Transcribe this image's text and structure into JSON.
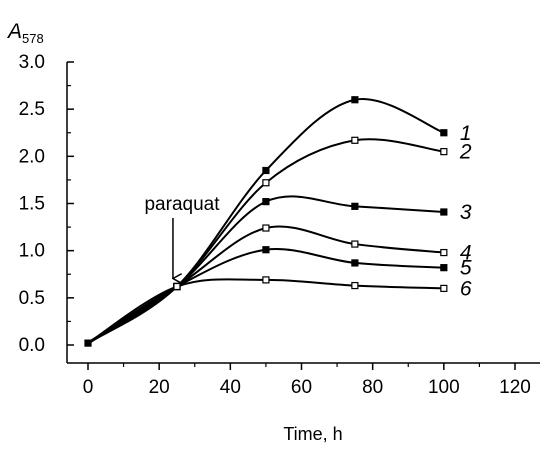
{
  "chart_data": {
    "type": "line",
    "ylabel": "A",
    "ylabel_sub": "578",
    "xlabel": "Time, h",
    "xlim": [
      0,
      120
    ],
    "ylim": [
      0,
      3.0
    ],
    "xticks": [
      "0",
      "20",
      "40",
      "60",
      "80",
      "100",
      "120"
    ],
    "yticks": [
      "0.0",
      "0.5",
      "1.0",
      "1.5",
      "2.0",
      "2.5",
      "3.0"
    ],
    "grid": false,
    "legend": "curve numbers at right end of each line",
    "annotation": {
      "text": "paraquat",
      "x": 25,
      "y": 0.62
    },
    "series": [
      {
        "name": "1",
        "x": [
          0,
          25,
          50,
          75,
          100
        ],
        "y": [
          0.02,
          0.62,
          1.85,
          2.6,
          2.25
        ]
      },
      {
        "name": "2",
        "x": [
          0,
          25,
          50,
          75,
          100
        ],
        "y": [
          0.02,
          0.62,
          1.72,
          2.17,
          2.05
        ]
      },
      {
        "name": "3",
        "x": [
          0,
          25,
          50,
          75,
          100
        ],
        "y": [
          0.02,
          0.62,
          1.52,
          1.47,
          1.41
        ]
      },
      {
        "name": "4",
        "x": [
          0,
          25,
          50,
          75,
          100
        ],
        "y": [
          0.02,
          0.62,
          1.24,
          1.07,
          0.98
        ]
      },
      {
        "name": "5",
        "x": [
          0,
          25,
          50,
          75,
          100
        ],
        "y": [
          0.02,
          0.62,
          1.01,
          0.87,
          0.82
        ]
      },
      {
        "name": "6",
        "x": [
          0,
          25,
          50,
          75,
          100
        ],
        "y": [
          0.02,
          0.62,
          0.69,
          0.63,
          0.6
        ]
      }
    ]
  }
}
